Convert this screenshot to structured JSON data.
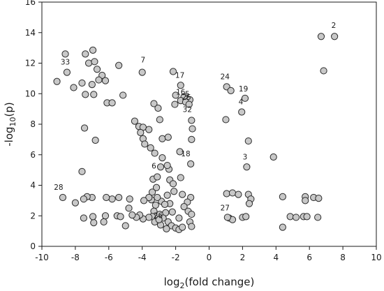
{
  "chart_data": {
    "type": "scatter",
    "title": "",
    "xlabel": "log2(fold change)",
    "ylabel": "-log10(p)",
    "xlim": [
      -10,
      10
    ],
    "ylim": [
      0,
      16
    ],
    "x_ticks": [
      "-10",
      "-8",
      "-6",
      "-4",
      "-2",
      "0",
      "2",
      "4",
      "6",
      "8",
      "10"
    ],
    "y_ticks": [
      "0",
      "2",
      "4",
      "6",
      "8",
      "10",
      "12",
      "14",
      "16"
    ],
    "grid": false,
    "marker_fill": "#c8c8c8",
    "marker_edge": "#2a2a2a",
    "points": [
      {
        "x": -9.1,
        "y": 10.8
      },
      {
        "x": -8.6,
        "y": 12.6
      },
      {
        "x": -8.5,
        "y": 11.4
      },
      {
        "x": -8.1,
        "y": 10.4
      },
      {
        "x": -7.6,
        "y": 10.7
      },
      {
        "x": -7.4,
        "y": 12.6
      },
      {
        "x": -7.2,
        "y": 12.0
      },
      {
        "x": -6.95,
        "y": 12.85
      },
      {
        "x": -6.85,
        "y": 12.1
      },
      {
        "x": -6.7,
        "y": 11.6
      },
      {
        "x": -6.4,
        "y": 11.2
      },
      {
        "x": -6.2,
        "y": 10.85
      },
      {
        "x": -6.6,
        "y": 10.9
      },
      {
        "x": -7.0,
        "y": 10.6
      },
      {
        "x": -7.4,
        "y": 9.95
      },
      {
        "x": -6.9,
        "y": 9.95
      },
      {
        "x": -6.1,
        "y": 9.4
      },
      {
        "x": -5.8,
        "y": 9.4
      },
      {
        "x": -5.15,
        "y": 9.9
      },
      {
        "x": -5.4,
        "y": 11.85
      },
      {
        "x": -4.0,
        "y": 11.4
      },
      {
        "x": -2.15,
        "y": 11.45
      },
      {
        "x": -1.7,
        "y": 10.55
      },
      {
        "x": -2.0,
        "y": 9.9
      },
      {
        "x": -1.5,
        "y": 9.8
      },
      {
        "x": -1.15,
        "y": 9.6
      },
      {
        "x": -1.7,
        "y": 9.55
      },
      {
        "x": -2.05,
        "y": 9.3
      },
      {
        "x": -1.4,
        "y": 9.45
      },
      {
        "x": -1.2,
        "y": 9.3
      },
      {
        "x": -1.05,
        "y": 8.25
      },
      {
        "x": -1.0,
        "y": 7.7
      },
      {
        "x": -1.05,
        "y": 7.0
      },
      {
        "x": -3.3,
        "y": 9.35
      },
      {
        "x": -3.05,
        "y": 9.05
      },
      {
        "x": -4.45,
        "y": 8.2
      },
      {
        "x": -4.2,
        "y": 7.85
      },
      {
        "x": -3.95,
        "y": 7.8
      },
      {
        "x": -4.1,
        "y": 7.45
      },
      {
        "x": -3.6,
        "y": 7.65
      },
      {
        "x": -3.95,
        "y": 7.05
      },
      {
        "x": -3.85,
        "y": 6.7
      },
      {
        "x": -3.5,
        "y": 6.45
      },
      {
        "x": -3.25,
        "y": 6.1
      },
      {
        "x": -2.8,
        "y": 7.05
      },
      {
        "x": -2.45,
        "y": 7.15
      },
      {
        "x": -2.95,
        "y": 8.3
      },
      {
        "x": -1.75,
        "y": 6.2
      },
      {
        "x": -2.8,
        "y": 5.8
      },
      {
        "x": -2.9,
        "y": 5.2
      },
      {
        "x": -2.4,
        "y": 5.05
      },
      {
        "x": -2.5,
        "y": 5.3
      },
      {
        "x": -1.1,
        "y": 5.4
      },
      {
        "x": -1.7,
        "y": 4.5
      },
      {
        "x": -3.35,
        "y": 4.4
      },
      {
        "x": -3.1,
        "y": 4.55
      },
      {
        "x": -3.15,
        "y": 3.85
      },
      {
        "x": -2.35,
        "y": 4.35
      },
      {
        "x": -2.15,
        "y": 4.1
      },
      {
        "x": -2.1,
        "y": 3.6
      },
      {
        "x": -2.5,
        "y": 3.35
      },
      {
        "x": -1.6,
        "y": 3.4
      },
      {
        "x": -1.1,
        "y": 3.2
      },
      {
        "x": -1.3,
        "y": 2.9
      },
      {
        "x": -1.5,
        "y": 2.6
      },
      {
        "x": -1.25,
        "y": 2.3
      },
      {
        "x": -1.8,
        "y": 1.85
      },
      {
        "x": -1.05,
        "y": 2.1
      },
      {
        "x": -1.15,
        "y": 1.6
      },
      {
        "x": -2.2,
        "y": 2.25
      },
      {
        "x": -2.6,
        "y": 2.2
      },
      {
        "x": -2.35,
        "y": 2.8
      },
      {
        "x": -2.85,
        "y": 2.95
      },
      {
        "x": -3.1,
        "y": 3.2
      },
      {
        "x": -3.45,
        "y": 3.05
      },
      {
        "x": -3.4,
        "y": 3.55
      },
      {
        "x": -3.6,
        "y": 3.2
      },
      {
        "x": -3.9,
        "y": 3.0
      },
      {
        "x": -2.65,
        "y": 2.75
      },
      {
        "x": -3.2,
        "y": 2.7
      },
      {
        "x": -3.3,
        "y": 2.3
      },
      {
        "x": -3.4,
        "y": 1.95
      },
      {
        "x": -2.95,
        "y": 2.1
      },
      {
        "x": -2.75,
        "y": 1.85
      },
      {
        "x": -2.45,
        "y": 1.6
      },
      {
        "x": -2.25,
        "y": 1.35
      },
      {
        "x": -2.0,
        "y": 1.2
      },
      {
        "x": -1.8,
        "y": 1.1
      },
      {
        "x": -2.55,
        "y": 1.15
      },
      {
        "x": -2.9,
        "y": 1.4
      },
      {
        "x": -3.25,
        "y": 1.6
      },
      {
        "x": -3.6,
        "y": 1.9
      },
      {
        "x": -3.95,
        "y": 1.8
      },
      {
        "x": -3.0,
        "y": 1.75
      },
      {
        "x": -4.15,
        "y": 2.05
      },
      {
        "x": -4.35,
        "y": 1.9
      },
      {
        "x": -4.6,
        "y": 2.05
      },
      {
        "x": -4.75,
        "y": 3.1
      },
      {
        "x": -4.8,
        "y": 2.5
      },
      {
        "x": -5.4,
        "y": 3.2
      },
      {
        "x": -5.5,
        "y": 2.0
      },
      {
        "x": -5.3,
        "y": 1.95
      },
      {
        "x": -5.0,
        "y": 1.35
      },
      {
        "x": -5.8,
        "y": 3.1
      },
      {
        "x": -6.15,
        "y": 3.2
      },
      {
        "x": -6.2,
        "y": 2.0
      },
      {
        "x": -6.3,
        "y": 1.6
      },
      {
        "x": -6.9,
        "y": 1.55
      },
      {
        "x": -7.0,
        "y": 3.2
      },
      {
        "x": -7.3,
        "y": 3.25
      },
      {
        "x": -7.5,
        "y": 3.1
      },
      {
        "x": -8.0,
        "y": 2.85
      },
      {
        "x": -8.75,
        "y": 3.2
      },
      {
        "x": -6.95,
        "y": 1.95
      },
      {
        "x": -7.5,
        "y": 1.85
      },
      {
        "x": -7.6,
        "y": 4.9
      },
      {
        "x": -7.45,
        "y": 7.75
      },
      {
        "x": -6.8,
        "y": 6.95
      },
      {
        "x": 1.05,
        "y": 10.45
      },
      {
        "x": 1.3,
        "y": 10.2
      },
      {
        "x": 2.15,
        "y": 9.7
      },
      {
        "x": 1.95,
        "y": 8.8
      },
      {
        "x": 1.0,
        "y": 8.3
      },
      {
        "x": 2.35,
        "y": 6.9
      },
      {
        "x": 3.85,
        "y": 5.85
      },
      {
        "x": 2.25,
        "y": 5.2
      },
      {
        "x": 1.05,
        "y": 3.45
      },
      {
        "x": 1.4,
        "y": 3.5
      },
      {
        "x": 1.75,
        "y": 3.4
      },
      {
        "x": 2.35,
        "y": 3.4
      },
      {
        "x": 2.5,
        "y": 3.1
      },
      {
        "x": 2.4,
        "y": 2.8
      },
      {
        "x": 1.2,
        "y": 1.85
      },
      {
        "x": 1.4,
        "y": 1.75
      },
      {
        "x": 2.0,
        "y": 1.9
      },
      {
        "x": 2.2,
        "y": 1.95
      },
      {
        "x": 1.1,
        "y": 1.9
      },
      {
        "x": 4.4,
        "y": 3.25
      },
      {
        "x": 4.4,
        "y": 1.25
      },
      {
        "x": 4.85,
        "y": 1.95
      },
      {
        "x": 5.2,
        "y": 1.9
      },
      {
        "x": 5.65,
        "y": 1.95
      },
      {
        "x": 5.85,
        "y": 1.95
      },
      {
        "x": 5.75,
        "y": 3.25
      },
      {
        "x": 5.75,
        "y": 3.0
      },
      {
        "x": 6.25,
        "y": 3.2
      },
      {
        "x": 6.55,
        "y": 3.15
      },
      {
        "x": 6.5,
        "y": 1.9
      },
      {
        "x": 6.7,
        "y": 13.75
      },
      {
        "x": 7.5,
        "y": 13.75
      },
      {
        "x": 6.85,
        "y": 11.5
      },
      {
        "x": -1.05,
        "y": 1.3
      },
      {
        "x": -1.6,
        "y": 1.25
      }
    ],
    "annotations": [
      {
        "text": "2",
        "x": 7.45,
        "y": 14.3
      },
      {
        "text": "33",
        "x": -8.6,
        "y": 11.9
      },
      {
        "text": "7",
        "x": -3.95,
        "y": 12.05
      },
      {
        "text": "17",
        "x": -1.75,
        "y": 11.05
      },
      {
        "text": "24",
        "x": 0.95,
        "y": 10.95
      },
      {
        "text": "16",
        "x": -1.7,
        "y": 9.95
      },
      {
        "text": "5",
        "x": -1.3,
        "y": 9.8
      },
      {
        "text": "25",
        "x": -1.35,
        "y": 9.6
      },
      {
        "text": "19",
        "x": 2.05,
        "y": 10.15
      },
      {
        "text": "4",
        "x": 1.9,
        "y": 9.3
      },
      {
        "text": "32",
        "x": -1.3,
        "y": 8.8
      },
      {
        "text": "18",
        "x": -1.4,
        "y": 5.9
      },
      {
        "text": "3",
        "x": 2.15,
        "y": 5.7
      },
      {
        "text": "6",
        "x": -3.3,
        "y": 5.1
      },
      {
        "text": "28",
        "x": -9.0,
        "y": 3.7
      },
      {
        "text": "27",
        "x": 0.95,
        "y": 2.35
      },
      {
        "text": "26",
        "x": -3.05,
        "y": 1.85
      }
    ]
  }
}
